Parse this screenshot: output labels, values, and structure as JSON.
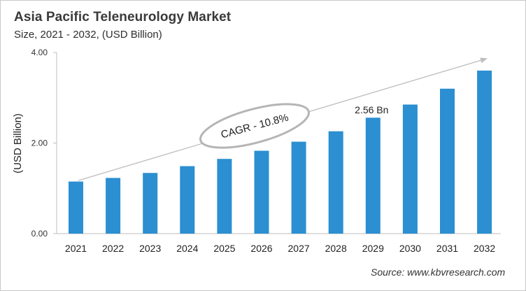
{
  "header": {
    "title": "Asia Pacific Teleneurology Market",
    "subtitle": "Size, 2021 - 2032, (USD Billion)"
  },
  "footer": {
    "source": "Source: www.kbvresearch.com"
  },
  "annotations": {
    "cagr": "CAGR - 10.8%",
    "value_label": "2.56 Bn",
    "value_label_year": "2029"
  },
  "colors": {
    "bar": "#2b8fd1",
    "axis": "#bfbfbf",
    "arrow": "#bdbdbd",
    "ellipse": "#b5b5b5"
  },
  "chart_data": {
    "type": "bar",
    "title": "Asia Pacific Teleneurology Market",
    "subtitle": "Size, 2021 - 2032, (USD Billion)",
    "xlabel": "",
    "ylabel": "(USD Billion)",
    "ylim": [
      0,
      4
    ],
    "yticks": [
      "0.00",
      "2.00",
      "4.00"
    ],
    "grid": false,
    "legend": null,
    "categories": [
      "2021",
      "2022",
      "2023",
      "2024",
      "2025",
      "2026",
      "2027",
      "2028",
      "2029",
      "2030",
      "2031",
      "2032"
    ],
    "values": [
      1.15,
      1.23,
      1.34,
      1.49,
      1.65,
      1.83,
      2.03,
      2.26,
      2.56,
      2.85,
      3.2,
      3.6
    ],
    "annotations": [
      {
        "text": "CAGR - 10.8%",
        "type": "ellipse-callout"
      },
      {
        "text": "2.56 Bn",
        "x": "2029"
      }
    ],
    "trend_arrow": true,
    "source": "Source: www.kbvresearch.com"
  }
}
